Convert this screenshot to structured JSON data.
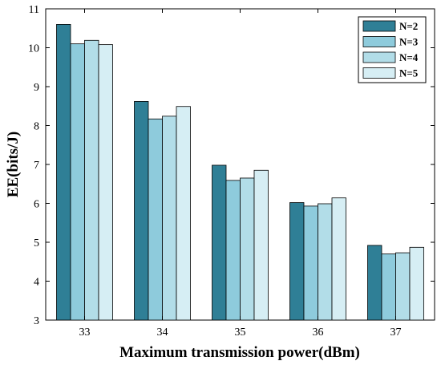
{
  "chart_data": {
    "type": "bar",
    "xlabel": "Maximum transmission power(dBm)",
    "ylabel": "EE(bits/J)",
    "categories": [
      "33",
      "34",
      "35",
      "36",
      "37"
    ],
    "ylim": [
      3,
      11
    ],
    "yticks": [
      "3",
      "4",
      "5",
      "6",
      "7",
      "8",
      "9",
      "10",
      "11"
    ],
    "grid": false,
    "legend_position": "top-right",
    "series": [
      {
        "name": "N=2",
        "color": "#2f7f96",
        "values": [
          10.6,
          8.62,
          6.98,
          6.02,
          4.92
        ]
      },
      {
        "name": "N=3",
        "color": "#8ecbdc",
        "values": [
          10.1,
          8.17,
          6.59,
          5.93,
          4.7
        ]
      },
      {
        "name": "N=4",
        "color": "#b2dde8",
        "values": [
          10.19,
          8.24,
          6.65,
          5.99,
          4.73
        ]
      },
      {
        "name": "N=5",
        "color": "#d6eef4",
        "values": [
          10.08,
          8.49,
          6.85,
          6.14,
          4.87
        ]
      }
    ]
  }
}
